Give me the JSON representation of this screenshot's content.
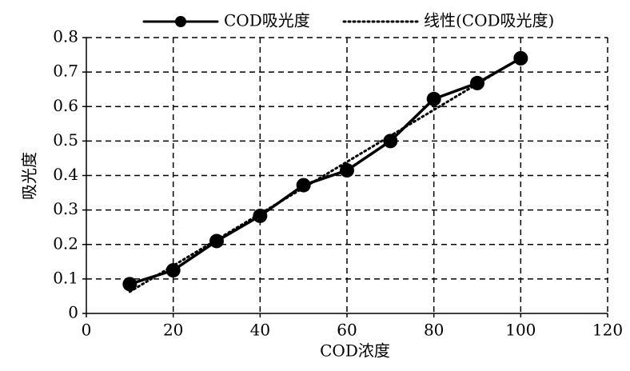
{
  "chart_data": {
    "type": "line",
    "x_label": "COD浓度",
    "y_label": "吸光度",
    "series": [
      {
        "name": "COD吸光度",
        "color": "#000000",
        "style": "solid",
        "markers": true,
        "x": [
          10,
          20,
          30,
          40,
          50,
          60,
          70,
          80,
          90,
          100
        ],
        "values": [
          0.085,
          0.125,
          0.21,
          0.283,
          0.372,
          0.415,
          0.5,
          0.622,
          0.668,
          0.74
        ]
      },
      {
        "name": "线性(COD吸光度)",
        "color": "#000000",
        "style": "dotted",
        "markers": false,
        "x": [
          10,
          100
        ],
        "values": [
          0.063,
          0.741
        ]
      }
    ],
    "xlim": [
      0,
      120
    ],
    "xticks": [
      0,
      20,
      40,
      60,
      80,
      100,
      120
    ],
    "ylim": [
      0,
      0.8
    ],
    "yticks": [
      0,
      0.1,
      0.2,
      0.3,
      0.4,
      0.5,
      0.6,
      0.7,
      0.8
    ],
    "grid": true,
    "legend": "top"
  }
}
